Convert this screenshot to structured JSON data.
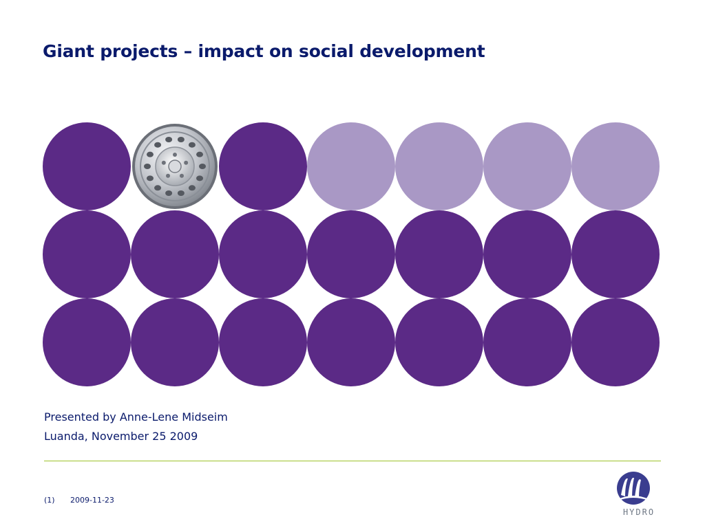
{
  "slide": {
    "title": "Giant projects – impact on social development",
    "presenter": "Presented by Anne-Lene Midseim",
    "place_date": "Luanda, November 25 2009",
    "footer_page": "(1)",
    "footer_date": "2009-11-23",
    "logo_text": "HYDRO"
  },
  "colors": {
    "title": "#0a1a6b",
    "circle_dark": "#5b2a86",
    "circle_light": "#a998c5",
    "divider": "#9cc22a",
    "logo": "#3a3d8f"
  },
  "circle_rows": [
    [
      "dark",
      "wheel",
      "dark",
      "light",
      "light",
      "light",
      "light"
    ],
    [
      "dark",
      "dark",
      "dark",
      "dark",
      "dark",
      "dark",
      "dark"
    ],
    [
      "dark",
      "dark",
      "dark",
      "dark",
      "dark",
      "dark",
      "dark"
    ]
  ]
}
